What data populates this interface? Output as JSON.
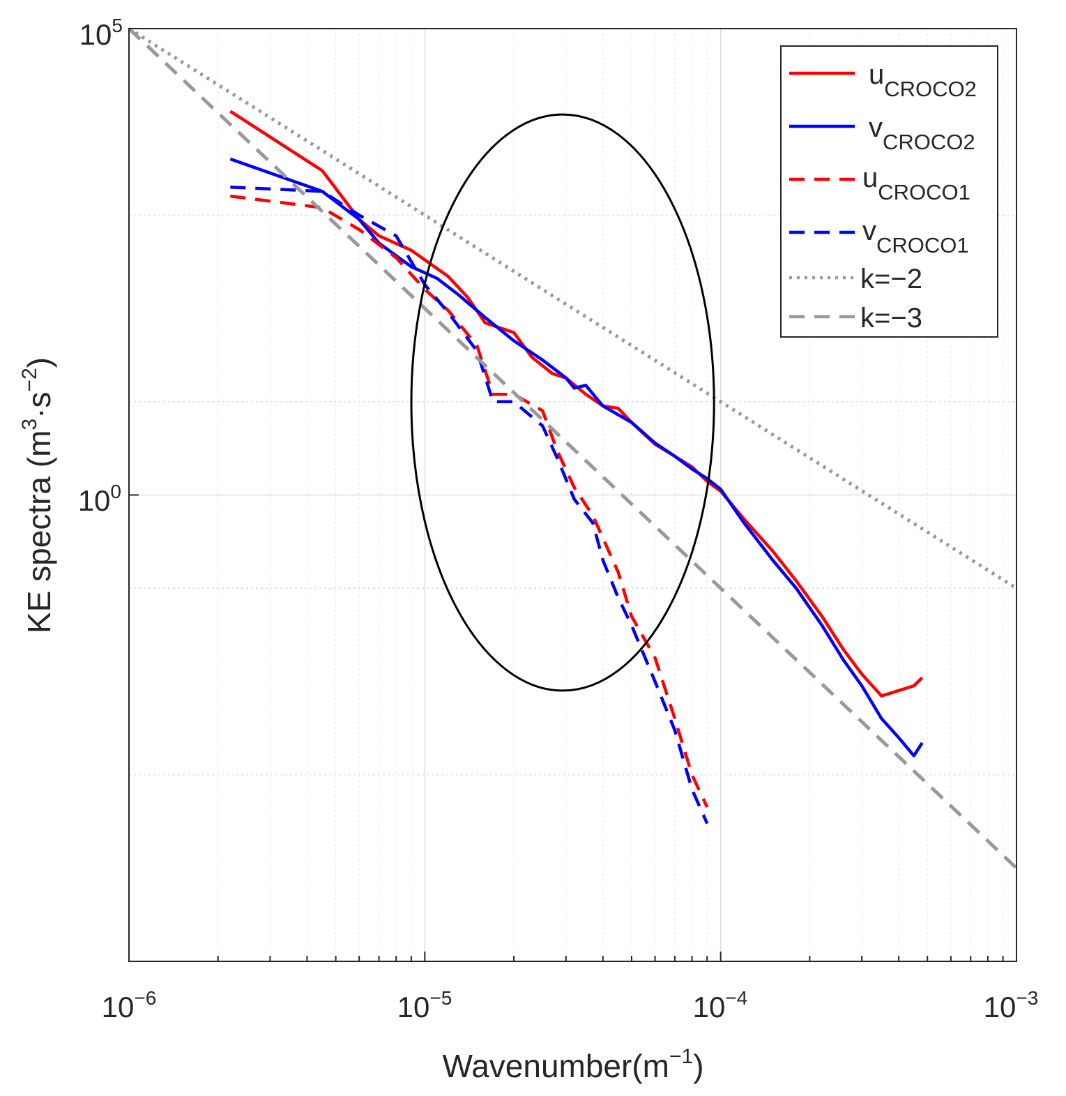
{
  "chart_data": {
    "type": "line",
    "title": "",
    "xlabel": {
      "base": "Wavenumber(m",
      "sup": "−1",
      "close": ")"
    },
    "ylabel": {
      "p1": "KE spectra (m",
      "sup1": "3",
      "p2": "·s",
      "sup2": "−2",
      "close": ")"
    },
    "x_scale": "log",
    "y_scale": "log",
    "xlim": [
      1e-06,
      0.001
    ],
    "ylim": [
      1e-05,
      100000.0
    ],
    "x_ticks": [
      {
        "base": "10",
        "exp": "−6"
      },
      {
        "base": "10",
        "exp": "−5"
      },
      {
        "base": "10",
        "exp": "−4"
      },
      {
        "base": "10",
        "exp": "−3"
      }
    ],
    "y_ticks": [
      {
        "base": "10",
        "exp": "0"
      },
      {
        "base": "10",
        "exp": "5"
      }
    ],
    "y_tick_values": [
      1,
      100000
    ],
    "grid": true,
    "legend_position": "top-right",
    "legend": [
      {
        "base": "u",
        "sub": "CROCO2",
        "color": "#ff0000",
        "style": "solid"
      },
      {
        "base": "v",
        "sub": "CROCO2",
        "color": "#0000ff",
        "style": "solid"
      },
      {
        "base": "u",
        "sub": "CROCO1",
        "color": "#ff0000",
        "style": "dashed"
      },
      {
        "base": "v",
        "sub": "CROCO1",
        "color": "#0000ff",
        "style": "dashed"
      },
      {
        "base": "k=−2",
        "sub": "",
        "color": "#999999",
        "style": "dotted"
      },
      {
        "base": "k=−3",
        "sub": "",
        "color": "#999999",
        "style": "dashed"
      }
    ],
    "series": [
      {
        "name": "u_CROCO2",
        "color": "#ff0000",
        "style": "solid",
        "points": [
          [
            2.2e-06,
            13000
          ],
          [
            4.5e-06,
            3000
          ],
          [
            6e-06,
            900
          ],
          [
            7e-06,
            600
          ],
          [
            9e-06,
            420
          ],
          [
            1.2e-05,
            220
          ],
          [
            1.4e-05,
            130
          ],
          [
            1.6e-05,
            70
          ],
          [
            2e-05,
            55
          ],
          [
            2.3e-05,
            30
          ],
          [
            2.7e-05,
            20
          ],
          [
            3e-05,
            18
          ],
          [
            3.5e-05,
            12
          ],
          [
            4e-05,
            9
          ],
          [
            4.5e-05,
            8.5
          ],
          [
            5e-05,
            6
          ],
          [
            6e-05,
            3.5
          ],
          [
            7e-05,
            2.6
          ],
          [
            8e-05,
            2
          ],
          [
            9e-05,
            1.4
          ],
          [
            0.0001,
            1.1
          ],
          [
            0.00012,
            0.55
          ],
          [
            0.00015,
            0.25
          ],
          [
            0.00018,
            0.12
          ],
          [
            0.00022,
            0.05
          ],
          [
            0.00026,
            0.022
          ],
          [
            0.0003,
            0.012
          ],
          [
            0.00035,
            0.007
          ],
          [
            0.0004,
            0.008
          ],
          [
            0.00045,
            0.009
          ],
          [
            0.00048,
            0.011
          ]
        ]
      },
      {
        "name": "v_CROCO2",
        "color": "#0000ff",
        "style": "solid",
        "points": [
          [
            2.2e-06,
            4000
          ],
          [
            4.5e-06,
            1800
          ],
          [
            6e-06,
            900
          ],
          [
            7e-06,
            500
          ],
          [
            9e-06,
            280
          ],
          [
            1.1e-05,
            210
          ],
          [
            1.3e-05,
            140
          ],
          [
            1.6e-05,
            80
          ],
          [
            2e-05,
            45
          ],
          [
            2.5e-05,
            28
          ],
          [
            3e-05,
            18
          ],
          [
            3.2e-05,
            14
          ],
          [
            3.5e-05,
            15
          ],
          [
            4e-05,
            9
          ],
          [
            5e-05,
            6
          ],
          [
            6e-05,
            3.6
          ],
          [
            7e-05,
            2.6
          ],
          [
            8e-05,
            1.9
          ],
          [
            9e-05,
            1.5
          ],
          [
            0.0001,
            1.15
          ],
          [
            0.00012,
            0.5
          ],
          [
            0.00015,
            0.2
          ],
          [
            0.00018,
            0.1
          ],
          [
            0.00022,
            0.04
          ],
          [
            0.00026,
            0.017
          ],
          [
            0.0003,
            0.009
          ],
          [
            0.00035,
            0.004
          ],
          [
            0.0004,
            0.0025
          ],
          [
            0.00045,
            0.0016
          ],
          [
            0.00048,
            0.0022
          ]
        ]
      },
      {
        "name": "u_CROCO1",
        "color": "#ff0000",
        "style": "dashed",
        "points": [
          [
            2.2e-06,
            1600
          ],
          [
            4.5e-06,
            1200
          ],
          [
            6e-06,
            700
          ],
          [
            8e-06,
            350
          ],
          [
            1e-05,
            160
          ],
          [
            1.2e-05,
            95
          ],
          [
            1.5e-05,
            40
          ],
          [
            1.7e-05,
            12
          ],
          [
            2e-05,
            12
          ],
          [
            2.5e-05,
            8
          ],
          [
            2.8e-05,
            3
          ],
          [
            3.2e-05,
            1.2
          ],
          [
            3.7e-05,
            0.6
          ],
          [
            4.5e-05,
            0.15
          ],
          [
            5e-05,
            0.05
          ],
          [
            6e-05,
            0.018
          ],
          [
            7e-05,
            0.004
          ],
          [
            8e-05,
            0.001
          ],
          [
            9e-05,
            0.00045
          ]
        ]
      },
      {
        "name": "v_CROCO1",
        "color": "#0000ff",
        "style": "dashed",
        "points": [
          [
            2.2e-06,
            2000
          ],
          [
            4.5e-06,
            1800
          ],
          [
            6e-06,
            1000
          ],
          [
            8e-06,
            600
          ],
          [
            1e-05,
            180
          ],
          [
            1.2e-05,
            90
          ],
          [
            1.5e-05,
            35
          ],
          [
            1.7e-05,
            10
          ],
          [
            2e-05,
            10
          ],
          [
            2.5e-05,
            5.5
          ],
          [
            2.8e-05,
            2.5
          ],
          [
            3.2e-05,
            0.9
          ],
          [
            3.7e-05,
            0.5
          ],
          [
            4e-05,
            0.2
          ],
          [
            4.5e-05,
            0.08
          ],
          [
            5e-05,
            0.04
          ],
          [
            6e-05,
            0.01
          ],
          [
            7e-05,
            0.003
          ],
          [
            8e-05,
            0.0007
          ],
          [
            9e-05,
            0.0003
          ]
        ]
      },
      {
        "name": "k=−2",
        "color": "#999999",
        "style": "dotted",
        "points": [
          [
            1e-06,
            100000
          ],
          [
            0.001,
            0.1
          ]
        ]
      },
      {
        "name": "k=−3",
        "color": "#999999",
        "style": "dashed",
        "points": [
          [
            1e-06,
            100000
          ],
          [
            0.001,
            0.0001
          ]
        ]
      }
    ],
    "annotations": [
      {
        "type": "ellipse",
        "color": "#000000",
        "x_range": [
          9e-06,
          9.5e-05
        ],
        "y_range": [
          0.008,
          12000
        ]
      }
    ]
  }
}
